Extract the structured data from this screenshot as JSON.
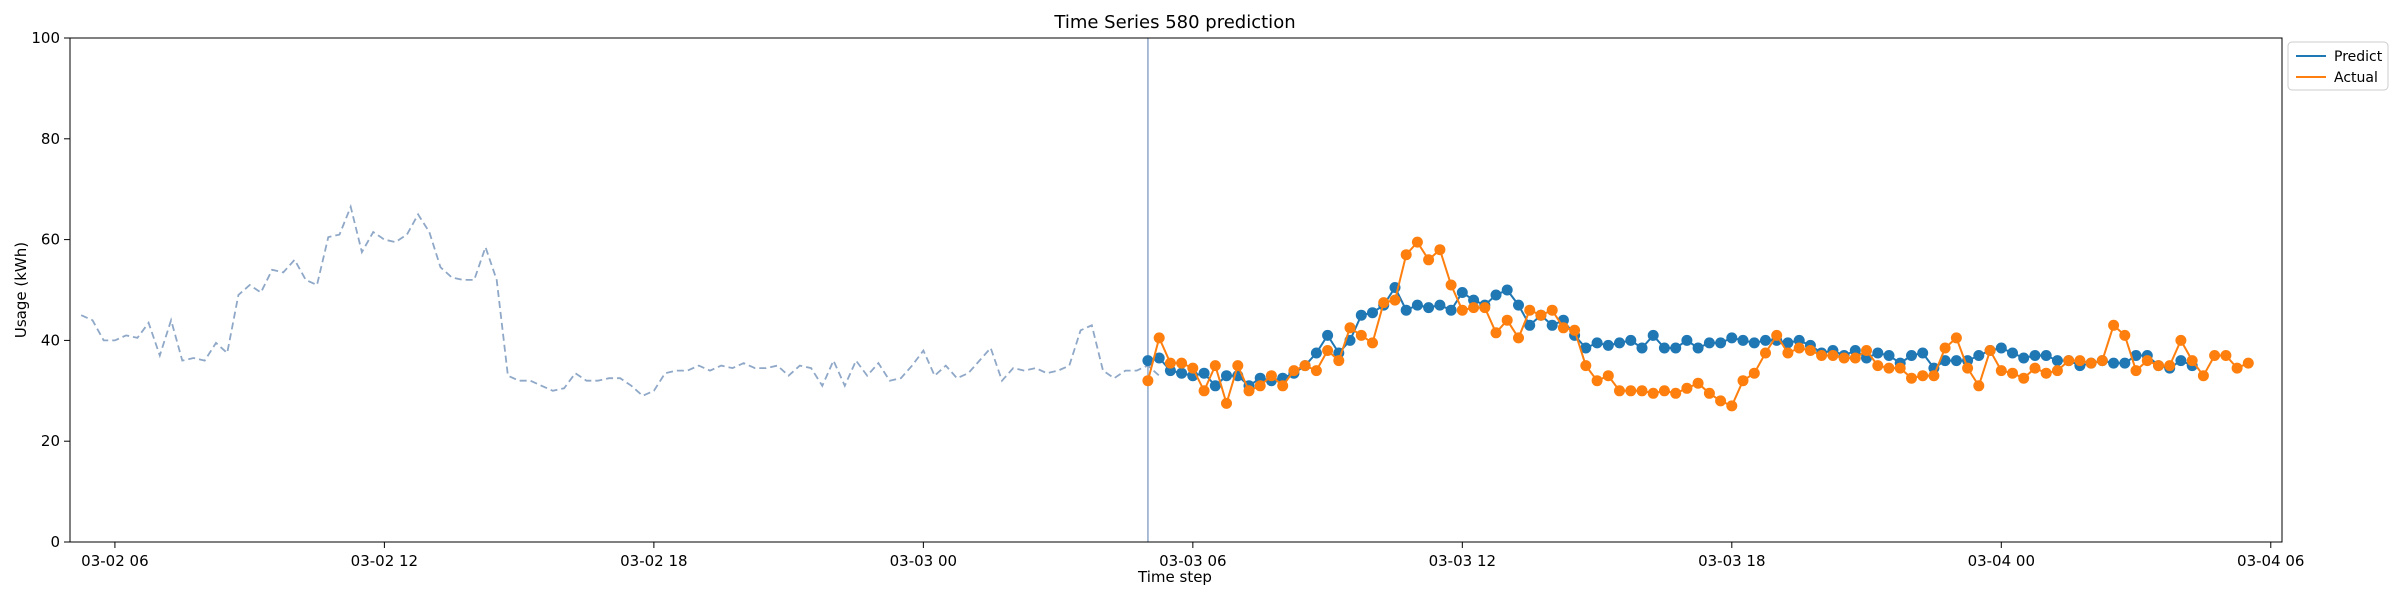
{
  "chart_data": {
    "type": "line",
    "title": "Time Series 580 prediction",
    "xlabel": "Time step",
    "ylabel": "Usage (kWh)",
    "ylim": [
      0,
      100
    ],
    "yticks": [
      0,
      20,
      40,
      60,
      80,
      100
    ],
    "x_start": "2024-03-02 05:00",
    "x_end": "2024-03-04 06:15",
    "x_ticks": [
      {
        "x": "2024-03-02 06:00",
        "label": "03-02 06"
      },
      {
        "x": "2024-03-02 12:00",
        "label": "03-02 12"
      },
      {
        "x": "2024-03-02 18:00",
        "label": "03-02 18"
      },
      {
        "x": "2024-03-03 00:00",
        "label": "03-03 00"
      },
      {
        "x": "2024-03-03 06:00",
        "label": "03-03 06"
      },
      {
        "x": "2024-03-03 12:00",
        "label": "03-03 12"
      },
      {
        "x": "2024-03-03 18:00",
        "label": "03-03 18"
      },
      {
        "x": "2024-03-04 00:00",
        "label": "03-04 00"
      },
      {
        "x": "2024-03-04 06:00",
        "label": "03-04 06"
      }
    ],
    "split_time": "2024-03-03 05:00",
    "interval_minutes": 15,
    "history": {
      "start": "2024-03-02 05:15",
      "values": [
        45,
        44,
        40,
        40,
        41,
        40.5,
        43.5,
        37,
        44,
        36,
        36.5,
        36,
        39.5,
        37.5,
        49,
        51,
        49.5,
        54,
        53.5,
        56,
        52,
        51,
        60.5,
        61,
        66.5,
        57.5,
        61.5,
        60,
        59.5,
        61,
        65,
        61.5,
        54.5,
        52.5,
        52,
        52,
        58.5,
        52,
        33,
        32,
        32,
        31,
        30,
        30.5,
        33.5,
        32,
        32,
        32.5,
        32.5,
        31,
        29,
        30,
        33.5,
        34,
        34,
        35,
        34,
        35,
        34.5,
        35.5,
        34.5,
        34.5,
        35,
        33,
        35,
        34.5,
        31,
        36,
        31,
        36,
        33,
        35.5,
        32,
        32.5,
        35,
        38,
        33,
        35,
        32.5,
        33.5,
        36,
        38.5,
        32,
        34.5,
        34,
        34.5,
        33.5,
        34,
        35,
        42,
        43,
        34,
        32.5,
        34,
        34,
        35,
        33
      ]
    },
    "series": [
      {
        "name": "Predict",
        "start": "2024-03-03 05:00",
        "values": [
          36,
          36.5,
          34,
          33.5,
          33,
          33.5,
          31,
          33,
          33,
          31,
          32.5,
          32,
          32.5,
          33.5,
          35,
          37.5,
          41,
          37.5,
          40,
          45,
          45.5,
          47,
          50.5,
          46,
          47,
          46.5,
          47,
          46,
          49.5,
          48,
          47,
          49,
          50,
          47,
          43,
          45,
          43,
          44,
          41,
          38.5,
          39.5,
          39,
          39.5,
          40,
          38.5,
          41,
          38.5,
          38.5,
          40,
          38.5,
          39.5,
          39.5,
          40.5,
          40,
          39.5,
          40,
          40,
          39.5,
          40,
          39,
          37.5,
          38,
          37,
          38,
          36.5,
          37.5,
          37,
          35.5,
          37,
          37.5,
          34.5,
          36,
          36,
          36,
          37,
          38,
          38.5,
          37.5,
          36.5,
          37,
          37,
          36,
          36,
          35,
          35.5,
          36,
          35.5,
          35.5,
          37,
          37,
          35,
          34.5,
          36,
          35
        ]
      },
      {
        "name": "Actual",
        "start": "2024-03-03 05:00",
        "values": [
          32,
          40.5,
          35.5,
          35.5,
          34.5,
          30,
          35,
          27.5,
          35,
          30,
          31,
          33,
          31,
          34,
          35,
          34,
          38,
          36,
          42.5,
          41,
          39.5,
          47.5,
          48,
          57,
          59.5,
          56,
          58,
          51,
          46,
          46.5,
          46.5,
          41.5,
          44,
          40.5,
          46,
          45,
          46,
          42.5,
          42,
          35,
          32,
          33,
          30,
          30,
          30,
          29.5,
          30,
          29.5,
          30.5,
          31.5,
          29.5,
          28,
          27,
          32,
          33.5,
          37.5,
          41,
          37.5,
          38.5,
          38,
          37,
          37,
          36.5,
          36.5,
          38,
          35,
          34.5,
          34.5,
          32.5,
          33,
          33,
          38.5,
          40.5,
          34.5,
          31,
          38,
          34,
          33.5,
          32.5,
          34.5,
          33.5,
          34,
          36,
          36,
          35.5,
          36,
          43,
          41,
          34,
          36,
          35,
          35,
          40,
          36,
          33,
          37,
          37,
          34.5,
          35.5
        ]
      }
    ],
    "colors": {
      "predict": "#1f77b4",
      "actual": "#ff7f0e",
      "history": "#8fa8c8",
      "split_line": "#8fa8c8"
    },
    "legend_position": "top-right (outside plot)",
    "grid": false
  }
}
